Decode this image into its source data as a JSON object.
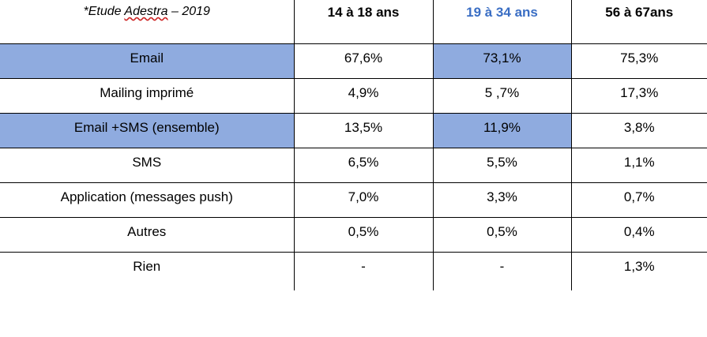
{
  "table": {
    "source_note": {
      "prefix": "*Etude ",
      "underlined": "Adestra",
      "suffix": " – 2019"
    },
    "headers": [
      "14 à 18 ans",
      "19 à 34 ans",
      "56 à 67ans"
    ],
    "rows": [
      {
        "label": "Email",
        "values": [
          "67,6%",
          "73,1%",
          "75,3%"
        ]
      },
      {
        "label": "Mailing imprimé",
        "values": [
          "4,9%",
          "5 ,7%",
          "17,3%"
        ]
      },
      {
        "label": "Email +SMS (ensemble)",
        "values": [
          "13,5%",
          "11,9%",
          "3,8%"
        ]
      },
      {
        "label": "SMS",
        "values": [
          "6,5%",
          "5,5%",
          "1,1%"
        ]
      },
      {
        "label": "Application (messages push)",
        "values": [
          "7,0%",
          "3,3%",
          "0,7%"
        ]
      },
      {
        "label": "Autres",
        "values": [
          "0,5%",
          "0,5%",
          "0,4%"
        ]
      },
      {
        "label": "Rien",
        "values": [
          "-",
          "-",
          "1,3%"
        ]
      }
    ]
  },
  "colors": {
    "highlight": "#8fabdf",
    "header_accent": "#3a6ec4",
    "border": "#000000"
  }
}
